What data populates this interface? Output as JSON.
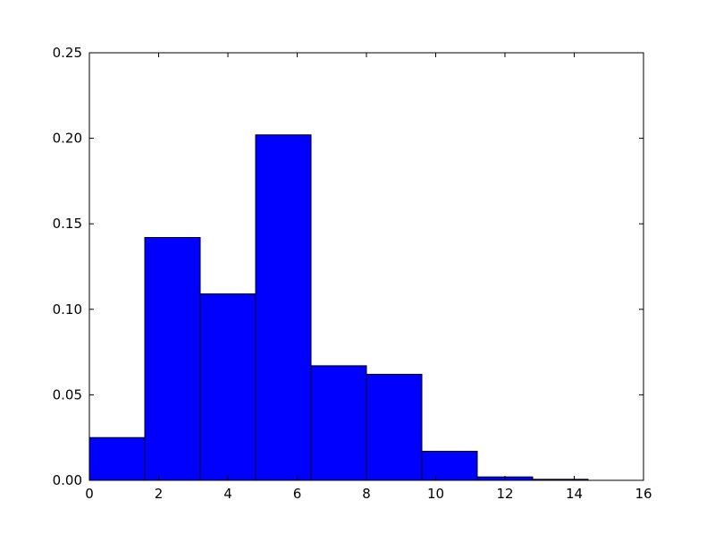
{
  "chart_data": {
    "type": "bar",
    "title": "",
    "xlabel": "",
    "ylabel": "",
    "bins": [
      {
        "x0": 0.0,
        "x1": 1.6,
        "value": 0.025
      },
      {
        "x0": 1.6,
        "x1": 3.2,
        "value": 0.142
      },
      {
        "x0": 3.2,
        "x1": 4.8,
        "value": 0.109
      },
      {
        "x0": 4.8,
        "x1": 6.4,
        "value": 0.202
      },
      {
        "x0": 6.4,
        "x1": 8.0,
        "value": 0.067
      },
      {
        "x0": 8.0,
        "x1": 9.6,
        "value": 0.062
      },
      {
        "x0": 9.6,
        "x1": 11.2,
        "value": 0.017
      },
      {
        "x0": 11.2,
        "x1": 12.8,
        "value": 0.002
      },
      {
        "x0": 12.8,
        "x1": 14.4,
        "value": 0.0006
      }
    ],
    "xlim": [
      0,
      16
    ],
    "ylim": [
      0,
      0.25
    ],
    "xticks": [
      0,
      2,
      4,
      6,
      8,
      10,
      12,
      14,
      16
    ],
    "xtick_labels": [
      "0",
      "2",
      "4",
      "6",
      "8",
      "10",
      "12",
      "14",
      "16"
    ],
    "yticks": [
      0,
      0.05,
      0.1,
      0.15,
      0.2,
      0.25
    ],
    "ytick_labels": [
      "0.00",
      "0.05",
      "0.10",
      "0.15",
      "0.20",
      "0.25"
    ],
    "grid": false,
    "bar_color": "#0000ff",
    "edge_color": "#000000"
  }
}
